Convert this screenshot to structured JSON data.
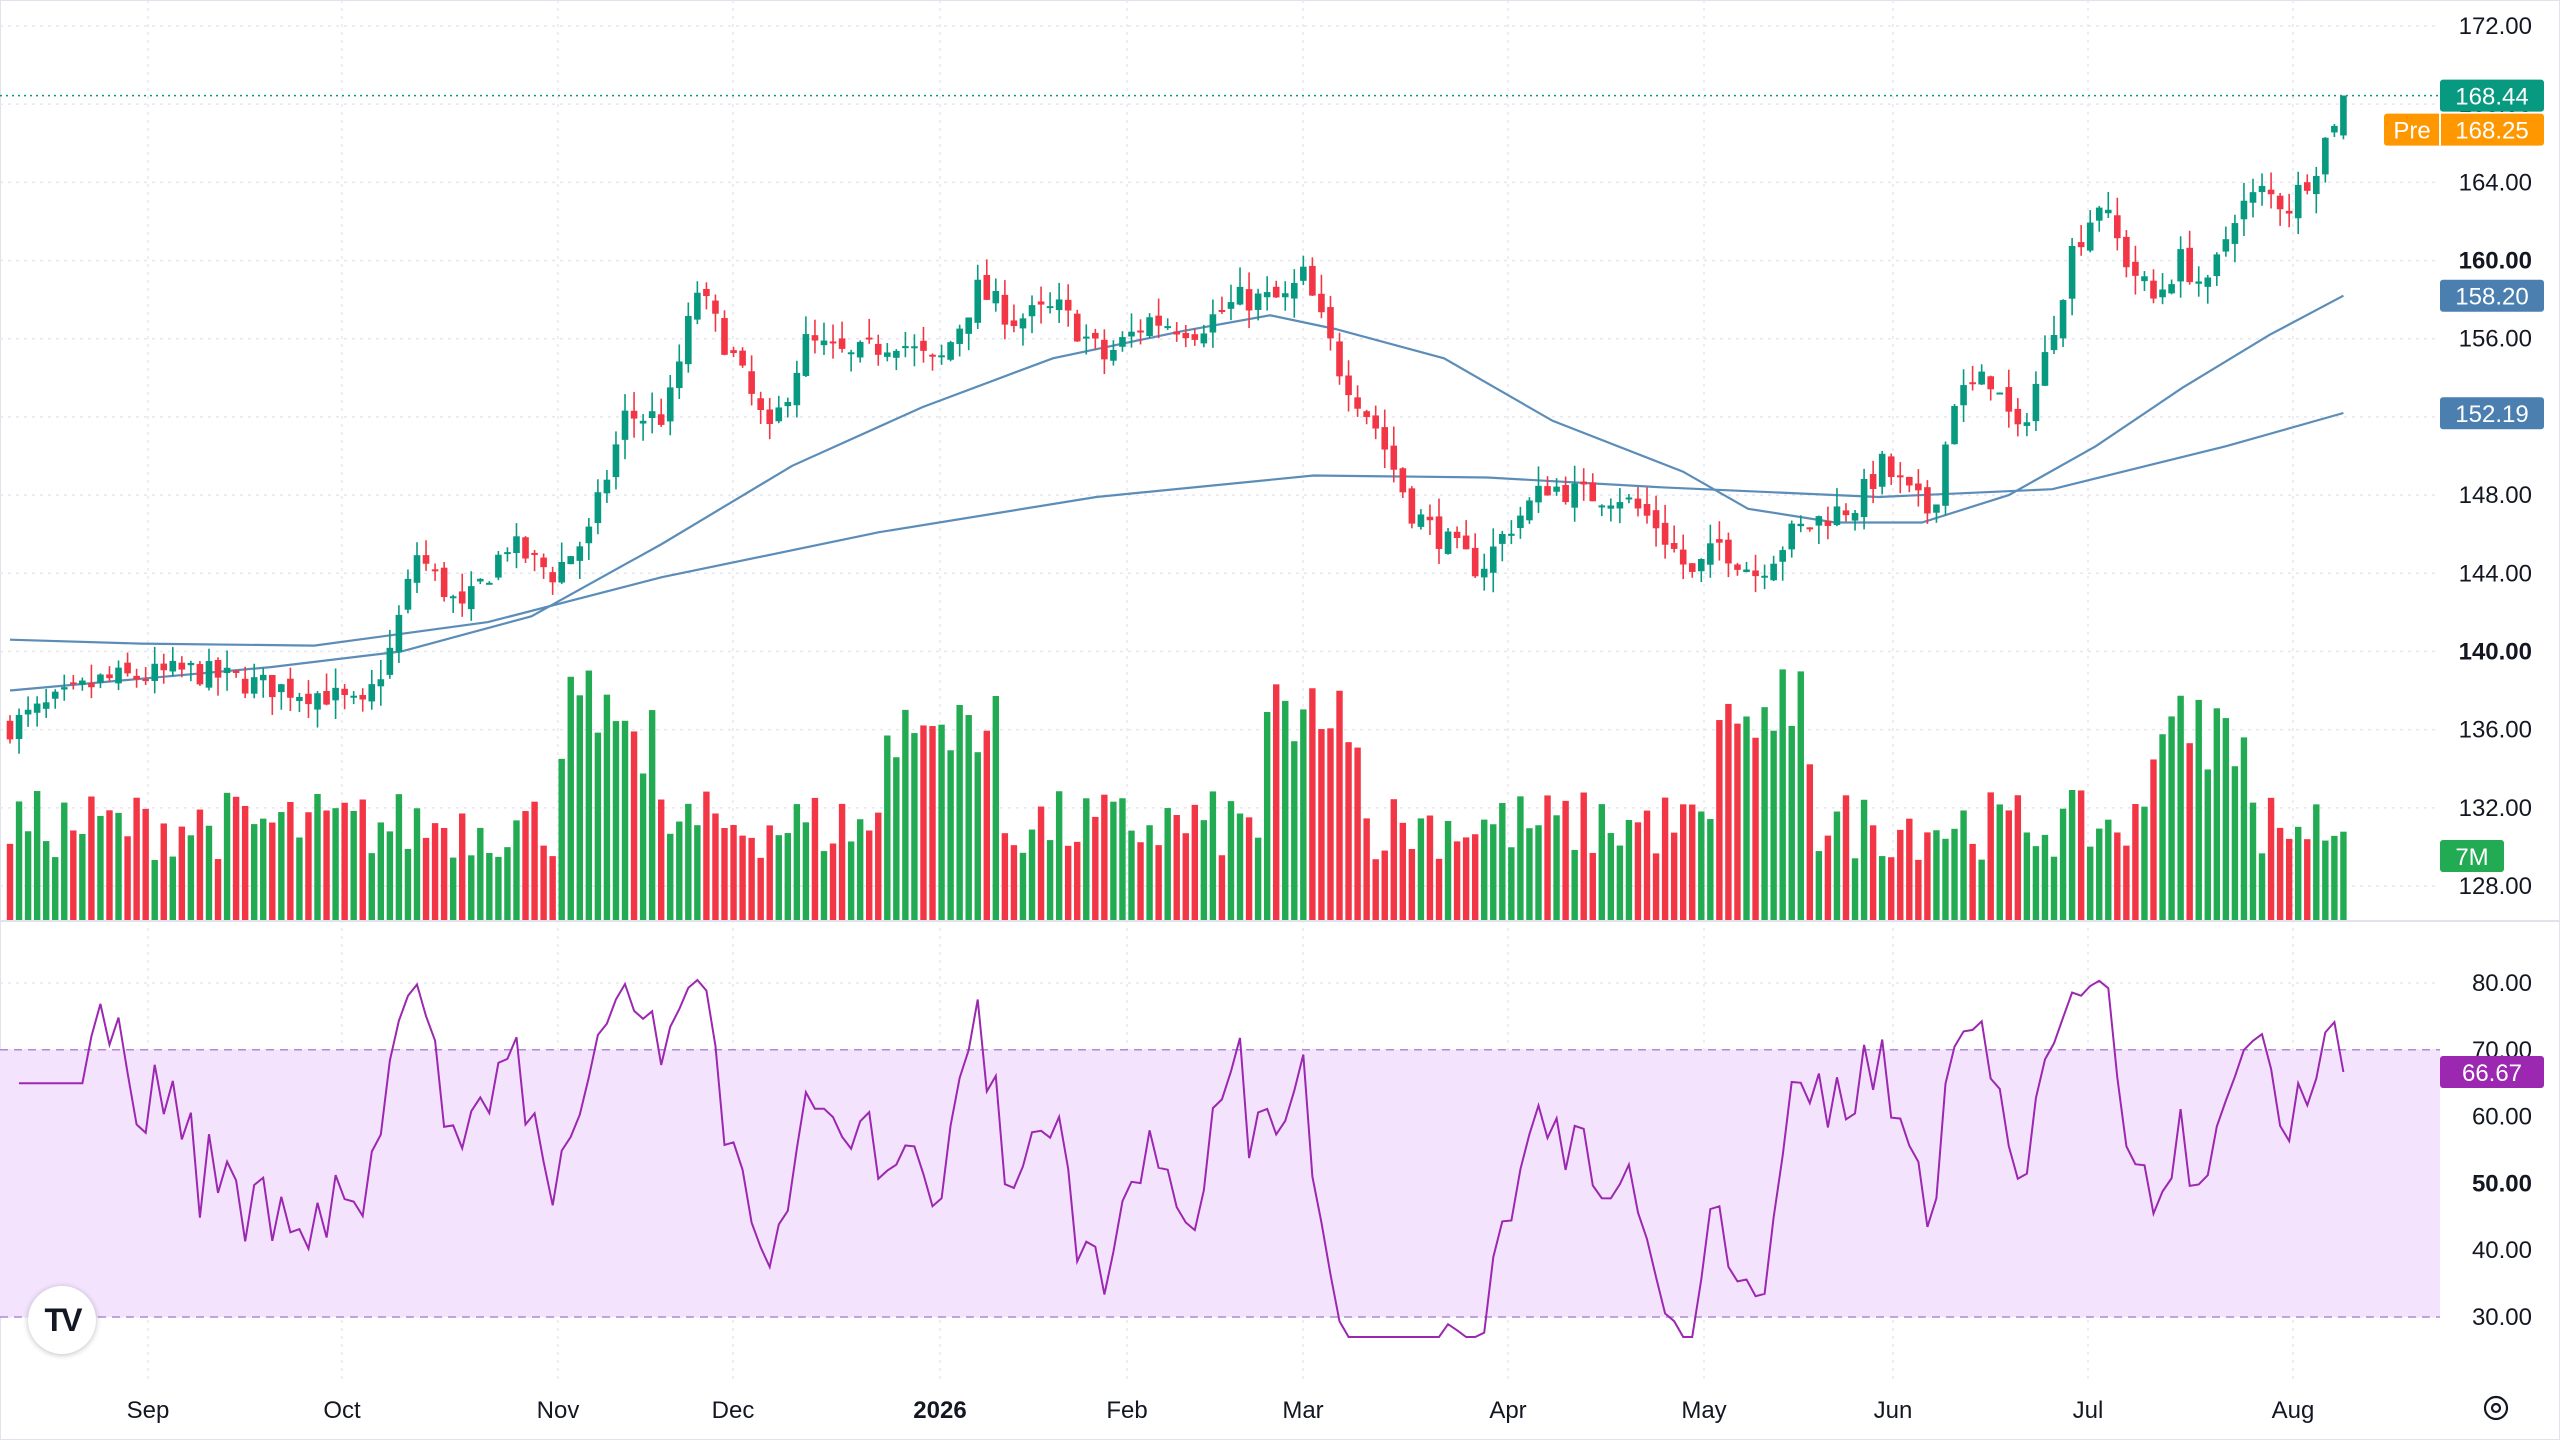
{
  "chart_data": [
    {
      "type": "candlestick",
      "title": "",
      "x_axis": {
        "labels": [
          "Sep",
          "Oct",
          "Nov",
          "Dec",
          "2026",
          "Feb",
          "Mar",
          "Apr",
          "May",
          "Jun",
          "Jul",
          "Aug"
        ]
      },
      "y_axis": {
        "range": [
          126,
          172
        ],
        "ticks": [
          "172.00",
          "168.00",
          "164.00",
          "160.00",
          "156.00",
          "152.00",
          "148.00",
          "144.00",
          "140.00",
          "136.00",
          "132.00",
          "128.00"
        ],
        "bold_ticks": [
          "160.00",
          "140.00"
        ]
      },
      "last_price": {
        "value": "168.44",
        "color": "#089981"
      },
      "premarket": {
        "label": "Pre",
        "value": "168.25",
        "color": "#ff9800"
      },
      "ma_fast": {
        "value": "158.20",
        "color": "#5b8db8",
        "points": [
          [
            0,
            138.0
          ],
          [
            30,
            138.6
          ],
          [
            60,
            139.2
          ],
          [
            90,
            140.0
          ],
          [
            120,
            141.8
          ],
          [
            150,
            145.5
          ],
          [
            180,
            149.5
          ],
          [
            210,
            152.5
          ],
          [
            240,
            155.0
          ],
          [
            270,
            156.4
          ],
          [
            290,
            157.2
          ],
          [
            305,
            156.5
          ],
          [
            330,
            155.0
          ],
          [
            355,
            151.8
          ],
          [
            385,
            149.2
          ],
          [
            400,
            147.3
          ],
          [
            420,
            146.6
          ],
          [
            440,
            146.6
          ],
          [
            460,
            148.0
          ],
          [
            480,
            150.5
          ],
          [
            500,
            153.5
          ],
          [
            520,
            156.2
          ],
          [
            537,
            158.2
          ]
        ]
      },
      "ma_slow": {
        "value": "152.19",
        "color": "#5b8db8",
        "points": [
          [
            0,
            140.6
          ],
          [
            30,
            140.4
          ],
          [
            70,
            140.3
          ],
          [
            110,
            141.5
          ],
          [
            150,
            143.8
          ],
          [
            200,
            146.1
          ],
          [
            250,
            147.9
          ],
          [
            300,
            149.0
          ],
          [
            340,
            148.9
          ],
          [
            380,
            148.4
          ],
          [
            430,
            147.9
          ],
          [
            470,
            148.3
          ],
          [
            510,
            150.5
          ],
          [
            537,
            152.2
          ]
        ]
      },
      "up_color": "#089981",
      "down_color": "#f23645",
      "volume": {
        "label": "7M",
        "color_up": "#22ab52",
        "color_down": "#f23645"
      },
      "series_seed": "daily OHLC approx Aug 2025 – Aug 2026"
    },
    {
      "type": "line",
      "title": "",
      "name": "",
      "y_axis": {
        "range": [
          25,
          87
        ],
        "ticks": [
          "80.00",
          "70.00",
          "60.00",
          "50.00",
          "40.00",
          "30.00"
        ],
        "bold_ticks": [
          "50.00"
        ]
      },
      "band": {
        "upper": 70,
        "lower": 30,
        "fill": "#f3e3fd",
        "line": "#b388d6"
      },
      "last_value": {
        "value": "66.67",
        "color": "#9c27b0"
      },
      "line_color": "#9c27b0"
    }
  ]
}
